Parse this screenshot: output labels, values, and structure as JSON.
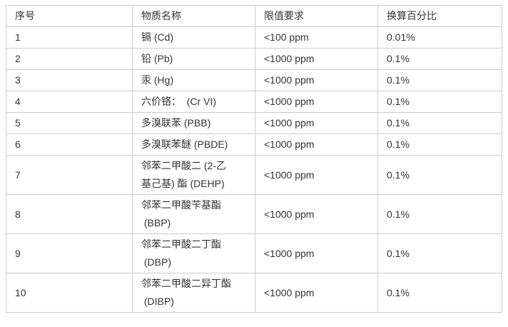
{
  "table": {
    "title_semantic": "RoHS restricted substances limits",
    "headers": [
      "序号",
      "物质名称",
      "限值要求",
      "换算百分比"
    ],
    "rows": [
      {
        "no": "1",
        "name": "镉 (Cd)",
        "limit": "<100 ppm",
        "pct": "0.01%"
      },
      {
        "no": "2",
        "name": "铅 (Pb)",
        "limit": "<1000 ppm",
        "pct": "0.1%"
      },
      {
        "no": "3",
        "name": "汞 (Hg)",
        "limit": "<1000 ppm",
        "pct": "0.1%"
      },
      {
        "no": "4",
        "name": "六价铬：  (Cr VI)",
        "limit": "<1000 ppm",
        "pct": "0.1%"
      },
      {
        "no": "5",
        "name": "多溴联苯 (PBB)",
        "limit": "<1000 ppm",
        "pct": "0.1%"
      },
      {
        "no": "6",
        "name": "多溴联苯醚 (PBDE)",
        "limit": "<1000 ppm",
        "pct": "0.1%"
      },
      {
        "no": "7",
        "name": "邻苯二甲酸二 (2-乙\n基己基) 酯 (DEHP)",
        "limit": "<1000 ppm",
        "pct": "0.1%"
      },
      {
        "no": "8",
        "name": "邻苯二甲酸苄基酯\n (BBP)",
        "limit": "<1000 ppm",
        "pct": "0.1%"
      },
      {
        "no": "9",
        "name": "邻苯二甲酸二丁酯\n (DBP)",
        "limit": "<1000 ppm",
        "pct": "0.1%"
      },
      {
        "no": "10",
        "name": "邻苯二甲酸二异丁酯\n (DIBP)",
        "limit": "<1000 ppm",
        "pct": "0.1%"
      }
    ],
    "colors": {
      "border": "#cccccc",
      "text": "#333333",
      "background": "#ffffff"
    }
  }
}
